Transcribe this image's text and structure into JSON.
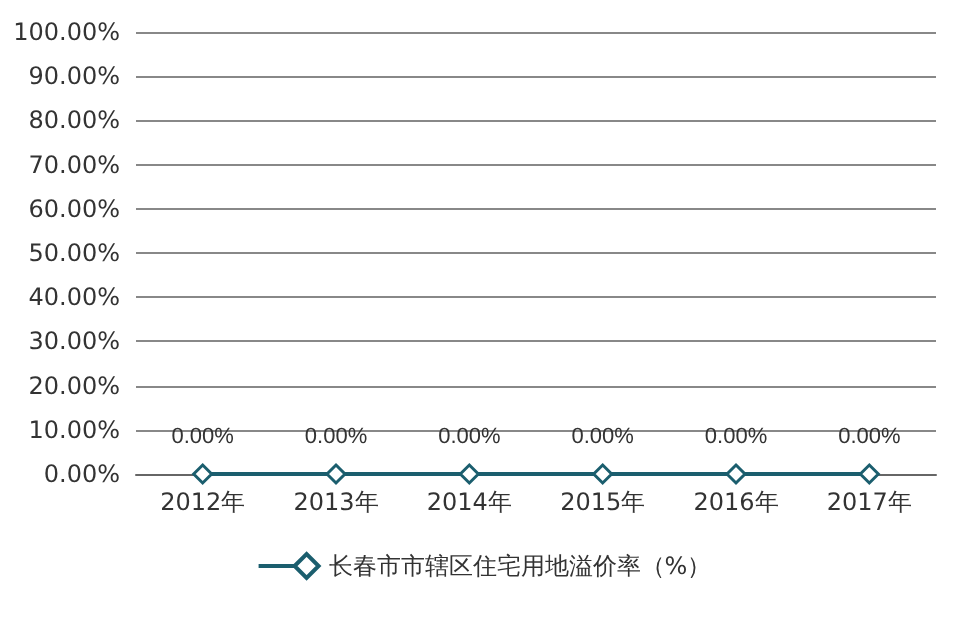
{
  "chart_data": {
    "type": "line",
    "categories": [
      "2012年",
      "2013年",
      "2014年",
      "2015年",
      "2016年",
      "2017年"
    ],
    "series": [
      {
        "name": "长春市市辖区住宅用地溢价率（%）",
        "color": "#1b5e6e",
        "values": [
          0,
          0,
          0,
          0,
          0,
          0
        ],
        "value_labels": [
          "0.00%",
          "0.00%",
          "0.00%",
          "0.00%",
          "0.00%",
          "0.00%"
        ]
      }
    ],
    "ylim": [
      0,
      100
    ],
    "yticks": [
      {
        "value": 0,
        "label": "0.00%"
      },
      {
        "value": 10,
        "label": "10.00%"
      },
      {
        "value": 20,
        "label": "20.00%"
      },
      {
        "value": 30,
        "label": "30.00%"
      },
      {
        "value": 40,
        "label": "40.00%"
      },
      {
        "value": 50,
        "label": "50.00%"
      },
      {
        "value": 60,
        "label": "60.00%"
      },
      {
        "value": 70,
        "label": "70.00%"
      },
      {
        "value": 80,
        "label": "80.00%"
      },
      {
        "value": 90,
        "label": "90.00%"
      },
      {
        "value": 100,
        "label": "100.00%"
      }
    ],
    "grid": "y",
    "legend": "bottom",
    "marker": "diamond",
    "line_style": "solid"
  }
}
